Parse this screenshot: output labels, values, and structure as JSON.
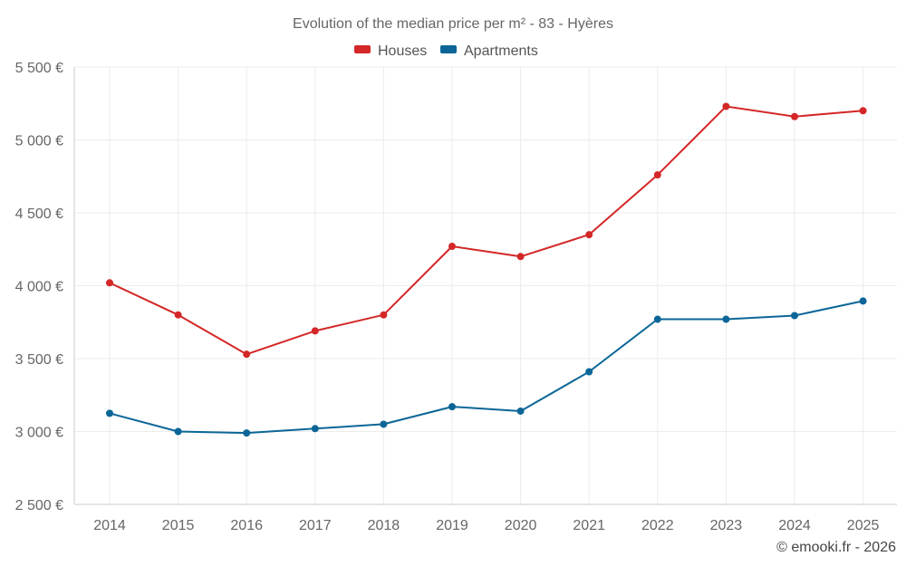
{
  "chart_data": {
    "type": "line",
    "title": "Evolution of the median price per m² - 83 - Hyères",
    "credit": "© emooki.fr - 2026",
    "categories": [
      "2014",
      "2015",
      "2016",
      "2017",
      "2018",
      "2019",
      "2020",
      "2021",
      "2022",
      "2023",
      "2024",
      "2025"
    ],
    "y_ticks": [
      "2 500 €",
      "3 000 €",
      "3 500 €",
      "4 000 €",
      "4 500 €",
      "5 000 €",
      "5 500 €"
    ],
    "ylim": [
      2500,
      5500
    ],
    "grid": true,
    "legend_position": "top-center",
    "series": [
      {
        "name": "Houses",
        "color": "#d42727",
        "values": [
          4020,
          3800,
          3530,
          3690,
          3800,
          4270,
          4200,
          4350,
          4760,
          5230,
          5160,
          5200
        ]
      },
      {
        "name": "Apartments",
        "color": "#0b6697",
        "values": [
          3125,
          3000,
          2990,
          3020,
          3050,
          3170,
          3140,
          3410,
          3770,
          3770,
          3795,
          3895
        ]
      }
    ]
  }
}
